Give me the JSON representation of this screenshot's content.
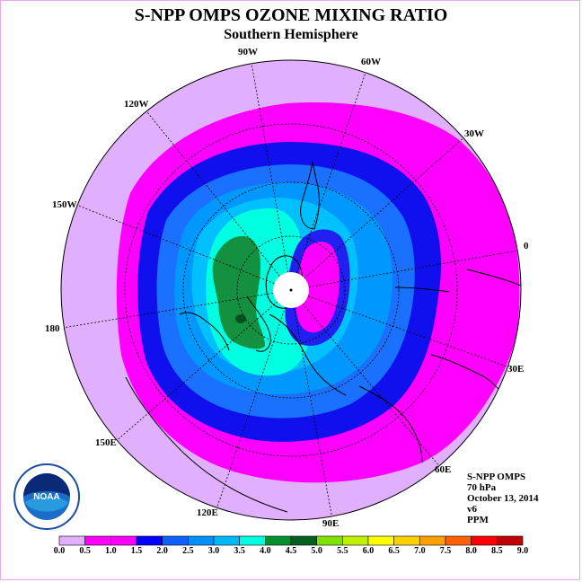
{
  "title": "S-NPP OMPS OZONE MIXING RATIO",
  "subtitle": "Southern Hemisphere",
  "longitude_labels": [
    "90W",
    "60W",
    "30W",
    "0",
    "30E",
    "60E",
    "90E",
    "120E",
    "150E",
    "180",
    "150W",
    "120W"
  ],
  "info": {
    "instrument": "S-NPP OMPS",
    "level": "70 hPa",
    "date": "October 13, 2014",
    "version": "v6",
    "units": "PPM"
  },
  "logo": {
    "text": "NOAA",
    "icon": "noaa-logo-icon"
  },
  "colorbar": {
    "ticks": [
      "0.0",
      "0.5",
      "1.0",
      "1.5",
      "2.0",
      "2.5",
      "3.0",
      "3.5",
      "4.0",
      "4.5",
      "5.0",
      "5.5",
      "6.0",
      "6.5",
      "7.0",
      "7.5",
      "8.0",
      "8.5",
      "9.0"
    ],
    "colors": [
      "#c080f0",
      "#e0b0ff",
      "#ff00ff",
      "#ff00ff",
      "#0000ff",
      "#1060ff",
      "#0090ff",
      "#00b8ff",
      "#00ffe0",
      "#009030",
      "#006020",
      "#80e000",
      "#c0f000",
      "#ffff00",
      "#ffd000",
      "#ffa000",
      "#ff6000",
      "#ff0000",
      "#c00000",
      "#805030"
    ]
  },
  "map_data": {
    "projection": "south-polar-stereographic",
    "levels_ppm": [
      0.5,
      1.0,
      1.5,
      2.0,
      2.5,
      3.0,
      3.5,
      4.0,
      4.5
    ],
    "description_levels": "ozone mixing ratio contours"
  }
}
